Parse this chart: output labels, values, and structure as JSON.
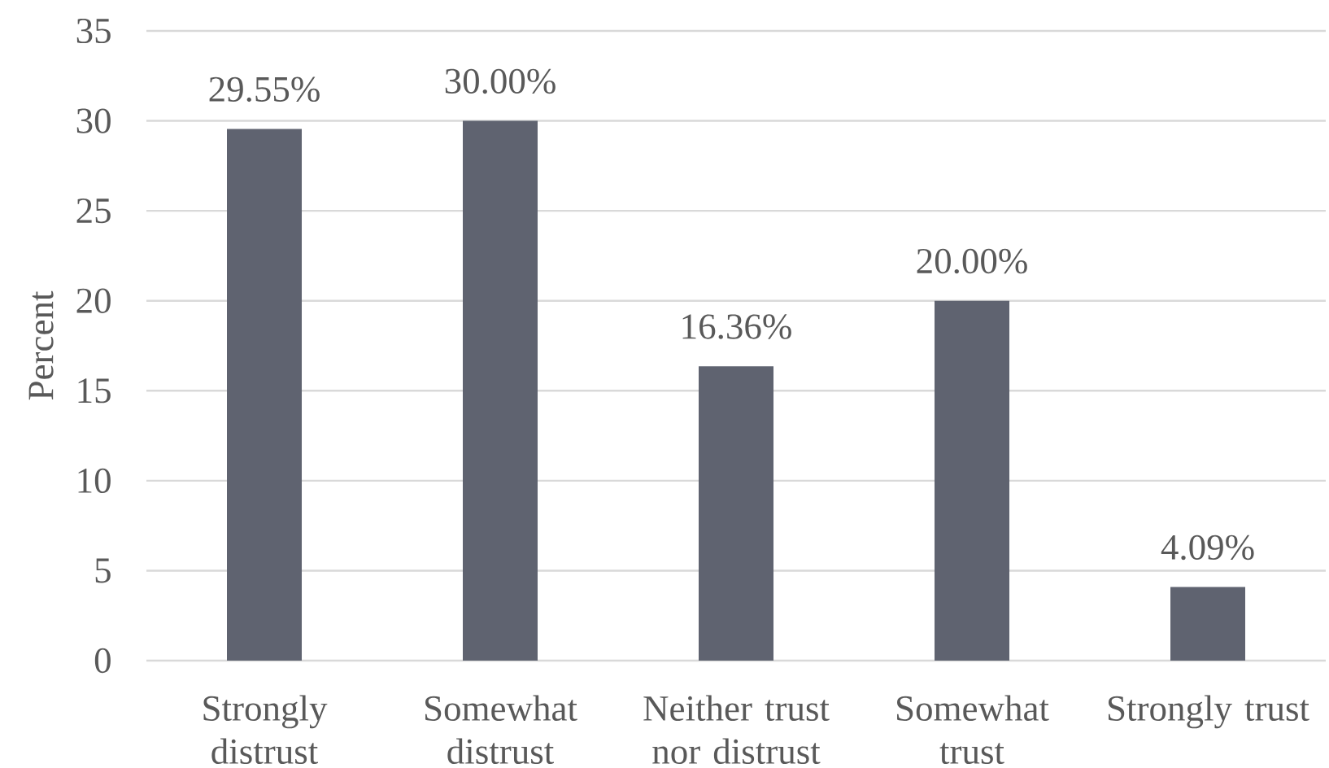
{
  "chart_data": {
    "type": "bar",
    "ylabel": "Percent",
    "categories": [
      "Strongly distrust",
      "Somewhat distrust",
      "Neither trust nor distrust",
      "Somewhat trust",
      "Strongly trust"
    ],
    "values": [
      29.55,
      30.0,
      16.36,
      20.0,
      4.09
    ],
    "value_labels": [
      "29.55%",
      "30.00%",
      "16.36%",
      "20.00%",
      "4.09%"
    ],
    "color": "#5f6370",
    "ylim": [
      0,
      35
    ],
    "yticks": [
      0,
      5,
      10,
      15,
      20,
      25,
      30,
      35
    ],
    "grid": "y"
  }
}
